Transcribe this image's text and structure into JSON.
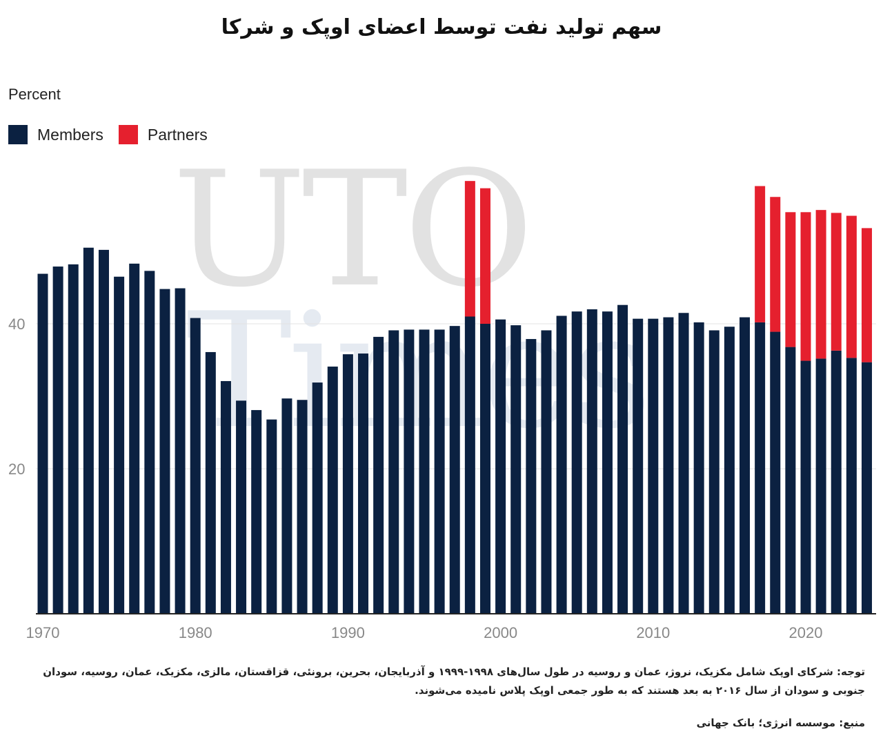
{
  "chart_data": {
    "type": "bar",
    "stacked": true,
    "title": "سهم تولید نفت توسط اعضای اوپک و شرکا",
    "ylabel": "Percent",
    "xlabel": "",
    "ylim": [
      0,
      60
    ],
    "yticks": [
      20,
      40
    ],
    "xticks": [
      1970,
      1980,
      1990,
      2000,
      2010,
      2020
    ],
    "grid": true,
    "legend_position": "top-left",
    "categories": [
      1970,
      1971,
      1972,
      1973,
      1974,
      1975,
      1976,
      1977,
      1978,
      1979,
      1980,
      1981,
      1982,
      1983,
      1984,
      1985,
      1986,
      1987,
      1988,
      1989,
      1990,
      1991,
      1992,
      1993,
      1994,
      1995,
      1996,
      1997,
      1998,
      1999,
      2000,
      2001,
      2002,
      2003,
      2004,
      2005,
      2006,
      2007,
      2008,
      2009,
      2010,
      2011,
      2012,
      2013,
      2014,
      2015,
      2016,
      2017,
      2018,
      2019,
      2020,
      2021,
      2022,
      2023,
      2024
    ],
    "series": [
      {
        "name": "Members",
        "color": "#0b2141",
        "values": [
          46.9,
          47.9,
          48.2,
          50.5,
          50.2,
          46.5,
          48.3,
          47.3,
          44.8,
          44.9,
          40.8,
          36.1,
          32.1,
          29.4,
          28.1,
          26.8,
          29.7,
          29.5,
          31.9,
          34.1,
          35.8,
          35.9,
          38.2,
          39.1,
          39.2,
          39.2,
          39.2,
          39.7,
          41.0,
          40.0,
          40.6,
          39.8,
          37.9,
          39.1,
          41.1,
          41.7,
          42.0,
          41.7,
          42.6,
          40.7,
          40.7,
          40.9,
          41.5,
          40.2,
          39.1,
          39.6,
          40.9,
          40.2,
          38.9,
          36.8,
          34.9,
          35.2,
          36.3,
          35.3,
          34.7
        ]
      },
      {
        "name": "Partners",
        "color": "#e5202e",
        "values": [
          0,
          0,
          0,
          0,
          0,
          0,
          0,
          0,
          0,
          0,
          0,
          0,
          0,
          0,
          0,
          0,
          0,
          0,
          0,
          0,
          0,
          0,
          0,
          0,
          0,
          0,
          0,
          0,
          18.7,
          18.7,
          0,
          0,
          0,
          0,
          0,
          0,
          0,
          0,
          0,
          0,
          0,
          0,
          0,
          0,
          0,
          0,
          0,
          18.8,
          18.6,
          18.6,
          20.5,
          20.5,
          19.0,
          19.6,
          18.5
        ]
      }
    ]
  },
  "watermark": {
    "line1": "UTO",
    "line2": "Times"
  },
  "notes": "توجه: شرکای اوپک شامل مکزیک، نروژ، عمان و روسیه در طول سال‌های ۱۹۹۸-۱۹۹۹ و آذربایجان، بحرین، برونئی، قزاقستان، مالزی، مکزیک، عمان، روسیه، سودان جنوبی و سودان از سال ۲۰۱۶ به بعد هستند که به طور جمعی اوپک پلاس نامیده می‌شوند.",
  "source": "منبع: موسسه انرژی؛ بانک جهانی"
}
